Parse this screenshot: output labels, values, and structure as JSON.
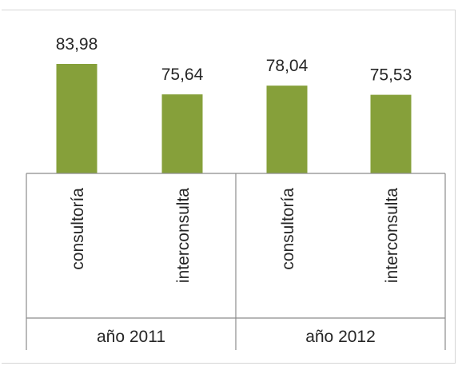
{
  "chart_data": {
    "type": "bar",
    "groups": [
      {
        "label": "año 2011",
        "categories": [
          "consultoría",
          "interconsulta"
        ],
        "values": [
          83.98,
          75.64
        ]
      },
      {
        "label": "año 2012",
        "categories": [
          "consultoría",
          "interconsulta"
        ],
        "values": [
          78.04,
          75.53
        ]
      }
    ],
    "value_labels": [
      "83,98",
      "75,64",
      "78,04",
      "75,53"
    ],
    "bar_color": "#86a03a",
    "title": "",
    "xlabel": "",
    "ylabel": "",
    "grid": false,
    "legend": "none"
  }
}
